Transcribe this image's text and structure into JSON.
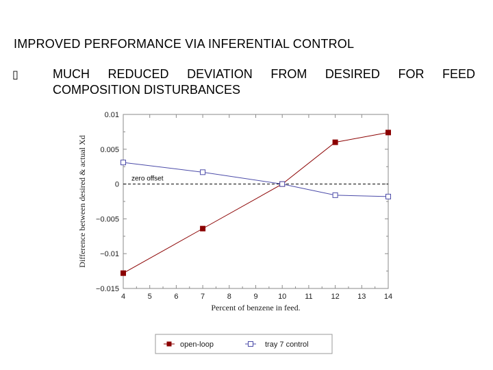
{
  "slide": {
    "title": "IMPROVED PERFORMANCE VIA INFERENTIAL CONTROL",
    "bullet_glyph": "▯",
    "bullet_line1": "MUCH REDUCED DEVIATION FROM DESIRED FOR FEED",
    "bullet_line2": "COMPOSITION DISTURBANCES"
  },
  "chart_data": {
    "type": "line",
    "title": "",
    "xlabel": "Percent of benzene in feed.",
    "ylabel": "Difference between desired & actual Xd",
    "xlim": [
      4,
      14
    ],
    "ylim": [
      -0.015,
      0.01
    ],
    "x_ticks": [
      4,
      5,
      6,
      7,
      8,
      9,
      10,
      11,
      12,
      13,
      14
    ],
    "y_ticks": [
      0.01,
      0.005,
      0,
      -0.005,
      -0.01,
      -0.015
    ],
    "y_tick_labels": [
      "0.01",
      "0.005",
      "0",
      "−0.005",
      "−0.01",
      "−0.015"
    ],
    "grid": false,
    "legend_position": "bottom",
    "series": [
      {
        "name": "open-loop",
        "color": "#8b0000",
        "marker": "filled-square",
        "x": [
          4,
          7,
          10,
          12,
          14
        ],
        "y": [
          -0.0128,
          -0.0064,
          0.0,
          0.006,
          0.0074
        ]
      },
      {
        "name": "tray 7 control",
        "color": "#4a4aa8",
        "marker": "open-square",
        "x": [
          4,
          7,
          10,
          12,
          14
        ],
        "y": [
          0.0031,
          0.0017,
          0.0,
          -0.0016,
          -0.0018
        ]
      }
    ],
    "annotations": [
      {
        "text": "zero offset",
        "y": 0,
        "line_style": "dashed"
      }
    ]
  }
}
